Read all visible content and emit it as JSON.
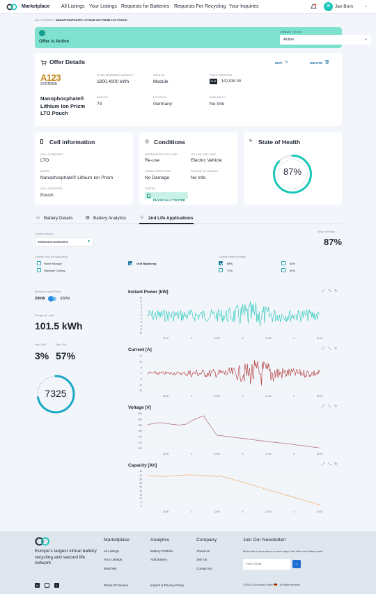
{
  "nav": {
    "brand": "Marketplace",
    "links": [
      "All Listings",
      "Your Listings",
      "Requests for Batteries",
      "Requests For Recycling",
      "Your Inquiries"
    ],
    "user": "Jan Born",
    "avatar_initials": "JB"
  },
  "breadcrumb": {
    "root": "ALL LISTINGS",
    "sep": "/",
    "current": "NANOPHOSPHATE® LITHIUM ION PRISM LTO POUCH"
  },
  "status": {
    "text": "Offer is Active",
    "change_label": "CHANGE STATUS",
    "value": "Active",
    "color": "#7fe2cf"
  },
  "offer": {
    "title": "Offer Details",
    "edit": "EDIT",
    "delete": "DELETE",
    "logo_text": "A123",
    "logo_sub": "SYSTEMS",
    "product_name": "Nanophosphate® Lithium Ion Prism LTO Pouch",
    "capacity_label": "TOTAL REMAINING CAPACITY",
    "capacity": "1800.4000 kWh",
    "sold_label": "SOLD AS",
    "sold": "Module",
    "price_label": "PRICE PROPOSAL",
    "currency": "EUR",
    "price": "162,036.00",
    "amount_label": "AMOUNT",
    "amount": "73",
    "location_label": "LOCATION",
    "location": "Germany",
    "availability_label": "AVAILABILITY",
    "availability": "No Info"
  },
  "cell": {
    "title": "Cell information",
    "chem_label": "CELL CHEMISTRY",
    "chem": "LTO",
    "model_label": "MODEL",
    "model": "Nanophosphate® Lithium Ion Prism",
    "geom_label": "CELL GEOMETRY",
    "geom": "Pouch"
  },
  "conditions": {
    "title": "Conditions",
    "use_label": "INTERRUPTED USE CASE",
    "use": "Re-use",
    "first_label": "1ST LIFE USE CASE",
    "first": "Electric Vehicle",
    "visual_label": "VISUAL INSPECTION",
    "visual": "No Damage",
    "source_label": "SOURCE OF MODULE",
    "source": "No Info",
    "tested_label": "TESTED",
    "tested": "PHYSICALLY TESTED"
  },
  "soh": {
    "title": "State of Health",
    "value": "87%",
    "percent": 87
  },
  "tabs": [
    "Battery Details",
    "Battery Analytics",
    "2nd Life Applications"
  ],
  "apps": {
    "module_label": "Choose Module",
    "module": "4053033061155093005",
    "soh_label": "State of Health",
    "soh": "87%",
    "app_label": "Choose 2nd Life Application",
    "apps": [
      {
        "label": "Home Storage",
        "checked": false
      },
      {
        "label": "Standard Cycling",
        "checked": false
      },
      {
        "label": "Grid Balancing",
        "checked": true
      }
    ],
    "state_label": "Choose State of Health",
    "states": [
      {
        "label": "87%",
        "checked": true
      },
      {
        "label": "70%",
        "checked": false
      },
      {
        "label": "80%",
        "checked": false
      },
      {
        "label": "65%",
        "checked": false
      }
    ],
    "power_label": "Maximum Input Power",
    "power_min": "20kW",
    "power_max": "32kW",
    "energy_label": "Energy per cycle",
    "energy": "101.5 kWh",
    "dod_label": "Avg. DoD",
    "dod": "3%",
    "soc_label": "Avg. SoC",
    "soc": "57%",
    "cycles": "7325",
    "cycles_fraction": 0.72
  },
  "chart_data": [
    {
      "type": "line",
      "title": "Instant Power [kW]",
      "ylim": [
        -10,
        10
      ],
      "y_ticks": [
        "10",
        "8",
        "6",
        "4",
        "2",
        "0",
        "-2",
        "-4",
        "-6",
        "-8",
        "-10"
      ],
      "x_ticks": [
        "12:00",
        "2",
        "12:00",
        "3",
        "12:00",
        "4",
        "12:00"
      ],
      "color": "#19c7b8",
      "pattern": "noise_center"
    },
    {
      "type": "line",
      "title": "Current [A]",
      "ylim": [
        -15,
        15
      ],
      "y_ticks": [
        "15",
        "10",
        "5",
        "0",
        "-5",
        "-10",
        "-15"
      ],
      "x_ticks": [
        "12:00",
        "2",
        "12:00",
        "3",
        "12:00",
        "4",
        "12:00"
      ],
      "color": "#b0302f",
      "pattern": "noise_late"
    },
    {
      "type": "line",
      "title": "Voltage [V]",
      "ylim": [
        700,
        850
      ],
      "y_ticks": [
        "850",
        "800",
        "780",
        "760",
        "740",
        "720",
        "700"
      ],
      "x_ticks": [
        "12:00",
        "2",
        "12:00",
        "3",
        "12:00",
        "4",
        "12:00"
      ],
      "color": "#a5505f",
      "pattern": "decay_voltage"
    },
    {
      "type": "line",
      "title": "Capacity [Ah]",
      "ylim": [
        0,
        45
      ],
      "y_ticks": [
        "45",
        "40",
        "35",
        "30",
        "25",
        "20",
        "15",
        "10",
        "5",
        "0"
      ],
      "x_ticks": [
        "12:00",
        "2",
        "12:00",
        "3",
        "12:00",
        "4",
        "12:00"
      ],
      "color": "#f0a45a",
      "pattern": "decay_capacity"
    }
  ],
  "footer": {
    "tagline": "Europe's largest virtual battery recycling and second life network.",
    "col1_title": "Marketplace",
    "col1": [
      "All Listings",
      "Your Listings",
      "Watchlist"
    ],
    "col2_title": "Analytics",
    "col2": [
      "Battery Portfolio",
      "Add Battery"
    ],
    "col3_title": "Company",
    "col3": [
      "About Us",
      "Join Us",
      "Contact Us"
    ],
    "newsletter_title": "Join Our Newsletter!",
    "newsletter_text": "Be the first to know about our next steps, best offers and battery world.",
    "email_placeholder": "Your email",
    "terms": "Terms Of Service",
    "imprint": "Imprint & Privacy Policy",
    "copyright": "©2024 Circunomics GmbH 🇩🇪 - All rights reserved"
  }
}
